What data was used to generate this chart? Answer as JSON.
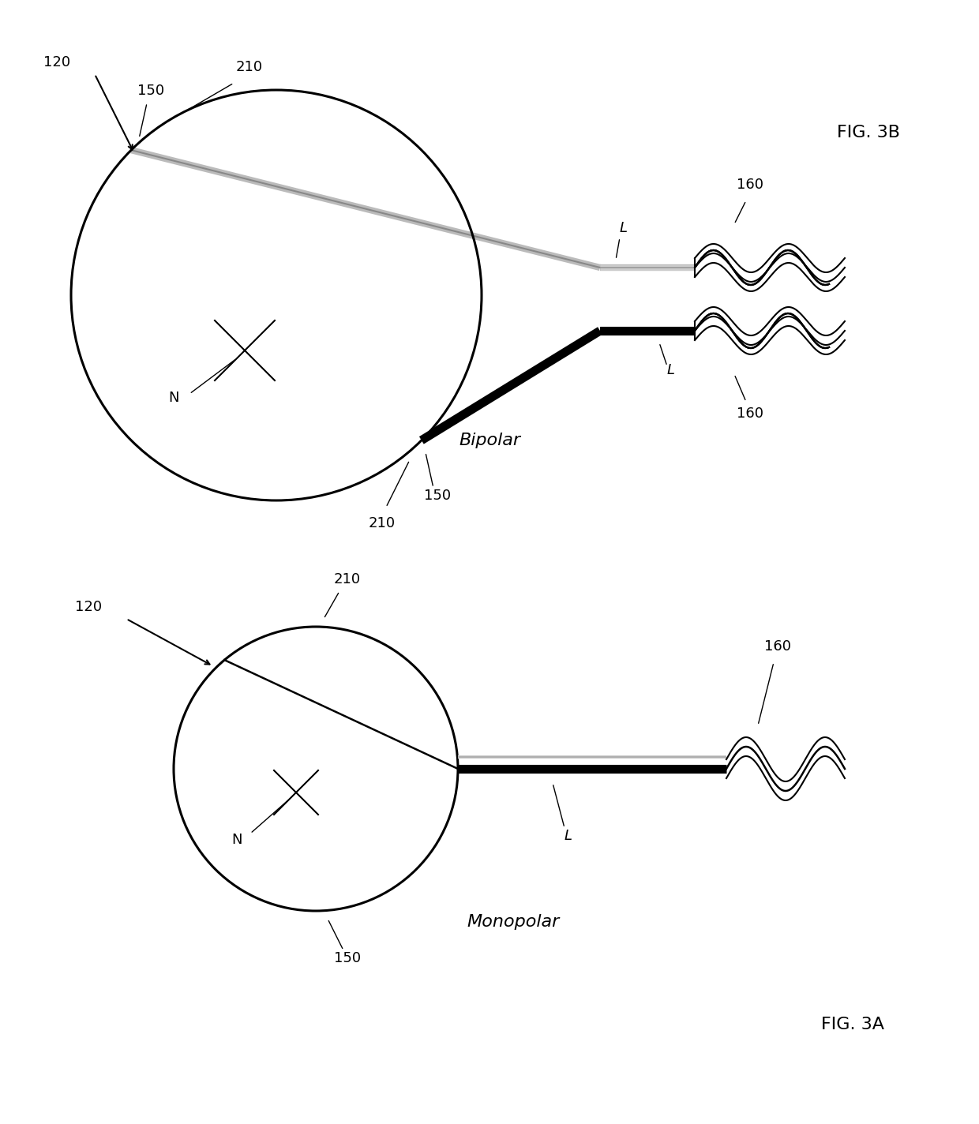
{
  "bg_color": "#ffffff",
  "fig_width": 12.4,
  "fig_height": 14.24,
  "figA_label": "FIG. 3A",
  "figB_label": "FIG. 3B",
  "label_monopolar": "Monopolar",
  "label_bipolar": "Bipolar",
  "ref_120": "120",
  "ref_150": "150",
  "ref_160": "160",
  "ref_210": "210",
  "ref_N": "N",
  "ref_L": "L",
  "line_color": "#000000",
  "gray_color": "#aaaaaa",
  "text_fontsize": 13,
  "title_fontsize": 16
}
